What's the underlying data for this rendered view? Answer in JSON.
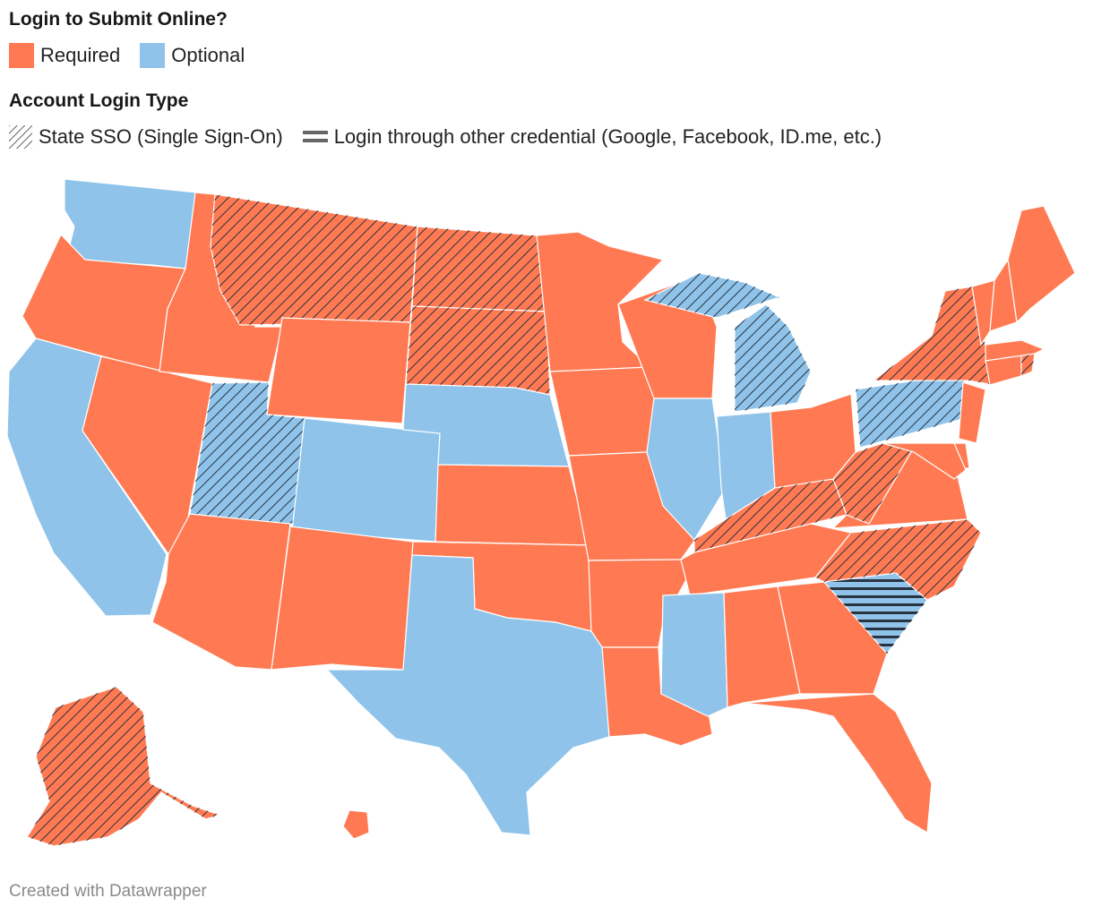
{
  "legend": {
    "title": "Login to Submit Online?",
    "required_label": "Required",
    "optional_label": "Optional",
    "type_title": "Account Login Type",
    "sso_label": "State SSO (Single Sign-On)",
    "other_label": "Login through other credential (Google, Facebook, ID.me, etc.)"
  },
  "colors": {
    "required": "#ff7a52",
    "optional": "#8fc3ea",
    "pattern_stroke": "#2a3340",
    "border": "#ffffff"
  },
  "footer": "Created with Datawrapper",
  "map_data": {
    "states": [
      {
        "id": "WA",
        "status": "optional",
        "login": "none"
      },
      {
        "id": "OR",
        "status": "required",
        "login": "none"
      },
      {
        "id": "CA",
        "status": "optional",
        "login": "none"
      },
      {
        "id": "NV",
        "status": "required",
        "login": "none"
      },
      {
        "id": "ID",
        "status": "required",
        "login": "none"
      },
      {
        "id": "MT",
        "status": "required",
        "login": "sso"
      },
      {
        "id": "WY",
        "status": "required",
        "login": "none"
      },
      {
        "id": "UT",
        "status": "optional",
        "login": "sso"
      },
      {
        "id": "AZ",
        "status": "required",
        "login": "none"
      },
      {
        "id": "CO",
        "status": "optional",
        "login": "none"
      },
      {
        "id": "NM",
        "status": "required",
        "login": "none"
      },
      {
        "id": "ND",
        "status": "required",
        "login": "sso"
      },
      {
        "id": "SD",
        "status": "required",
        "login": "sso"
      },
      {
        "id": "NE",
        "status": "optional",
        "login": "none"
      },
      {
        "id": "KS",
        "status": "required",
        "login": "none"
      },
      {
        "id": "OK",
        "status": "required",
        "login": "none"
      },
      {
        "id": "TX",
        "status": "optional",
        "login": "none"
      },
      {
        "id": "MN",
        "status": "required",
        "login": "none"
      },
      {
        "id": "IA",
        "status": "required",
        "login": "none"
      },
      {
        "id": "MO",
        "status": "required",
        "login": "none"
      },
      {
        "id": "AR",
        "status": "required",
        "login": "none"
      },
      {
        "id": "LA",
        "status": "required",
        "login": "none"
      },
      {
        "id": "WI",
        "status": "required",
        "login": "none"
      },
      {
        "id": "IL",
        "status": "optional",
        "login": "none"
      },
      {
        "id": "MI",
        "status": "optional",
        "login": "sso"
      },
      {
        "id": "MI-UP",
        "status": "optional",
        "login": "sso"
      },
      {
        "id": "IN",
        "status": "optional",
        "login": "none"
      },
      {
        "id": "OH",
        "status": "required",
        "login": "none"
      },
      {
        "id": "KY",
        "status": "required",
        "login": "sso"
      },
      {
        "id": "TN",
        "status": "required",
        "login": "none"
      },
      {
        "id": "MS",
        "status": "optional",
        "login": "none"
      },
      {
        "id": "AL",
        "status": "required",
        "login": "none"
      },
      {
        "id": "GA",
        "status": "required",
        "login": "none"
      },
      {
        "id": "FL",
        "status": "required",
        "login": "none"
      },
      {
        "id": "SC",
        "status": "optional",
        "login": "other"
      },
      {
        "id": "NC",
        "status": "required",
        "login": "sso"
      },
      {
        "id": "VA",
        "status": "required",
        "login": "none"
      },
      {
        "id": "WV",
        "status": "required",
        "login": "sso"
      },
      {
        "id": "PA",
        "status": "optional",
        "login": "sso"
      },
      {
        "id": "NY",
        "status": "required",
        "login": "sso"
      },
      {
        "id": "NJ",
        "status": "required",
        "login": "none"
      },
      {
        "id": "DE",
        "status": "required",
        "login": "none"
      },
      {
        "id": "MD",
        "status": "required",
        "login": "none"
      },
      {
        "id": "CT",
        "status": "required",
        "login": "none"
      },
      {
        "id": "RI",
        "status": "required",
        "login": "sso"
      },
      {
        "id": "MA",
        "status": "required",
        "login": "none"
      },
      {
        "id": "VT",
        "status": "required",
        "login": "none"
      },
      {
        "id": "NH",
        "status": "required",
        "login": "none"
      },
      {
        "id": "ME",
        "status": "required",
        "login": "none"
      },
      {
        "id": "AK",
        "status": "required",
        "login": "sso"
      },
      {
        "id": "HI",
        "status": "required",
        "login": "none"
      }
    ]
  }
}
